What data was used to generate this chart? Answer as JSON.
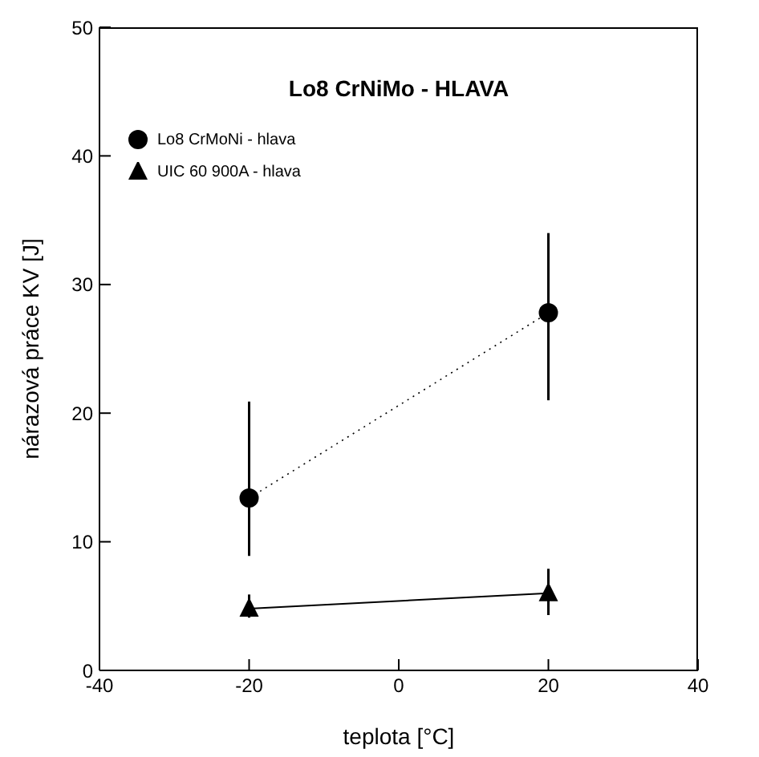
{
  "chart_data": {
    "type": "line",
    "title": "Lo8 CrNiMo - HLAVA",
    "xlabel": "teplota [°C]",
    "ylabel": "nárazová práce KV [J]",
    "xlim": [
      -40,
      40
    ],
    "xticks": [
      -40,
      -20,
      0,
      20,
      40
    ],
    "ylim": [
      0,
      50
    ],
    "yticks": [
      0,
      10,
      20,
      30,
      40,
      50
    ],
    "legend": "top left",
    "x": [
      -20,
      20
    ],
    "series": [
      {
        "name": "Lo8 CrMoNi - hlava",
        "color": "#000000",
        "marker": "circle",
        "line_style": "dotted",
        "values": [
          13.4,
          27.8
        ],
        "errors": [
          [
            8.9,
            20.9
          ],
          [
            21,
            34
          ]
        ]
      },
      {
        "name": "UIC 60 900A - hlava",
        "color": "#000000",
        "marker": "triangle",
        "line_style": "solid",
        "values": [
          4.8,
          6
        ],
        "errors": [
          [
            4.1,
            5.9
          ],
          [
            4.3,
            7.9
          ]
        ]
      }
    ]
  }
}
